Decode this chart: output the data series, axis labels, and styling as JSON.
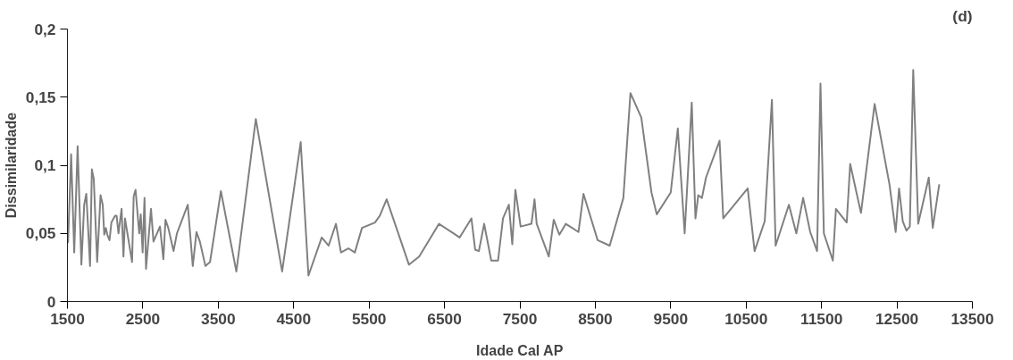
{
  "chart_data": {
    "type": "line",
    "title": "(d)",
    "xlabel": "Idade Cal AP",
    "ylabel": "Dissimilaridade",
    "xlim": [
      1500,
      13500
    ],
    "xticks": [
      1500,
      2500,
      3500,
      4500,
      5500,
      6500,
      7500,
      8500,
      9500,
      10500,
      11500,
      12500,
      13500
    ],
    "ylim": [
      0,
      0.2
    ],
    "yticks": [
      0,
      {
        "value": 0.05,
        "label": "0,05"
      },
      {
        "value": 0.1,
        "label": "0,1"
      },
      {
        "value": 0.15,
        "label": "0,15"
      },
      {
        "value": 0.2,
        "label": "0,2"
      }
    ],
    "grid": false,
    "marker": "none",
    "line_style": "solid",
    "series": [
      {
        "color": "#808080",
        "x": [
          1508,
          1549,
          1590,
          1635,
          1685,
          1722,
          1750,
          1800,
          1824,
          1849,
          1894,
          1939,
          1968,
          1988,
          2009,
          2029,
          2058,
          2083,
          2132,
          2152,
          2177,
          2218,
          2243,
          2263,
          2357,
          2378,
          2403,
          2452,
          2472,
          2497,
          2522,
          2542,
          2608,
          2641,
          2727,
          2772,
          2800,
          2837,
          2907,
          2952,
          3096,
          3162,
          3211,
          3256,
          3330,
          3391,
          3535,
          3740,
          3998,
          4347,
          4593,
          4696,
          4872,
          4963,
          5061,
          5127,
          5225,
          5311,
          5406,
          5578,
          5643,
          5733,
          6029,
          6164,
          6427,
          6702,
          6857,
          6907,
          6956,
          7026,
          7120,
          7210,
          7276,
          7354,
          7399,
          7440,
          7510,
          7653,
          7694,
          7723,
          7883,
          7949,
          8023,
          8109,
          8277,
          8343,
          8531,
          8691,
          8872,
          8966,
          9110,
          9245,
          9315,
          9500,
          9594,
          9685,
          9779,
          9828,
          9865,
          9914,
          9968,
          10148,
          10197,
          10521,
          10612,
          10747,
          10842,
          10891,
          11067,
          11166,
          11256,
          11350,
          11441,
          11486,
          11531,
          11650,
          11691,
          11834,
          11880,
          12023,
          12204,
          12401,
          12483,
          12528,
          12577,
          12626,
          12671,
          12716,
          12782,
          12922,
          12975,
          13061
        ],
        "values": [
          0.043,
          0.108,
          0.036,
          0.114,
          0.027,
          0.071,
          0.079,
          0.026,
          0.097,
          0.09,
          0.029,
          0.078,
          0.071,
          0.049,
          0.054,
          0.049,
          0.045,
          0.058,
          0.063,
          0.063,
          0.05,
          0.068,
          0.033,
          0.061,
          0.029,
          0.077,
          0.082,
          0.05,
          0.064,
          0.036,
          0.076,
          0.024,
          0.068,
          0.044,
          0.055,
          0.031,
          0.06,
          0.054,
          0.037,
          0.05,
          0.071,
          0.026,
          0.051,
          0.044,
          0.026,
          0.029,
          0.081,
          0.022,
          0.134,
          0.022,
          0.117,
          0.019,
          0.047,
          0.041,
          0.057,
          0.036,
          0.039,
          0.036,
          0.054,
          0.058,
          0.063,
          0.075,
          0.027,
          0.033,
          0.057,
          0.047,
          0.061,
          0.038,
          0.037,
          0.057,
          0.03,
          0.03,
          0.061,
          0.071,
          0.042,
          0.082,
          0.055,
          0.057,
          0.075,
          0.057,
          0.033,
          0.06,
          0.049,
          0.057,
          0.051,
          0.079,
          0.045,
          0.041,
          0.076,
          0.153,
          0.135,
          0.08,
          0.064,
          0.08,
          0.127,
          0.05,
          0.146,
          0.061,
          0.078,
          0.076,
          0.091,
          0.118,
          0.061,
          0.083,
          0.037,
          0.059,
          0.148,
          0.041,
          0.071,
          0.05,
          0.076,
          0.051,
          0.037,
          0.16,
          0.05,
          0.03,
          0.068,
          0.058,
          0.101,
          0.065,
          0.145,
          0.086,
          0.051,
          0.083,
          0.059,
          0.052,
          0.055,
          0.17,
          0.057,
          0.091,
          0.054,
          0.086
        ]
      }
    ]
  }
}
